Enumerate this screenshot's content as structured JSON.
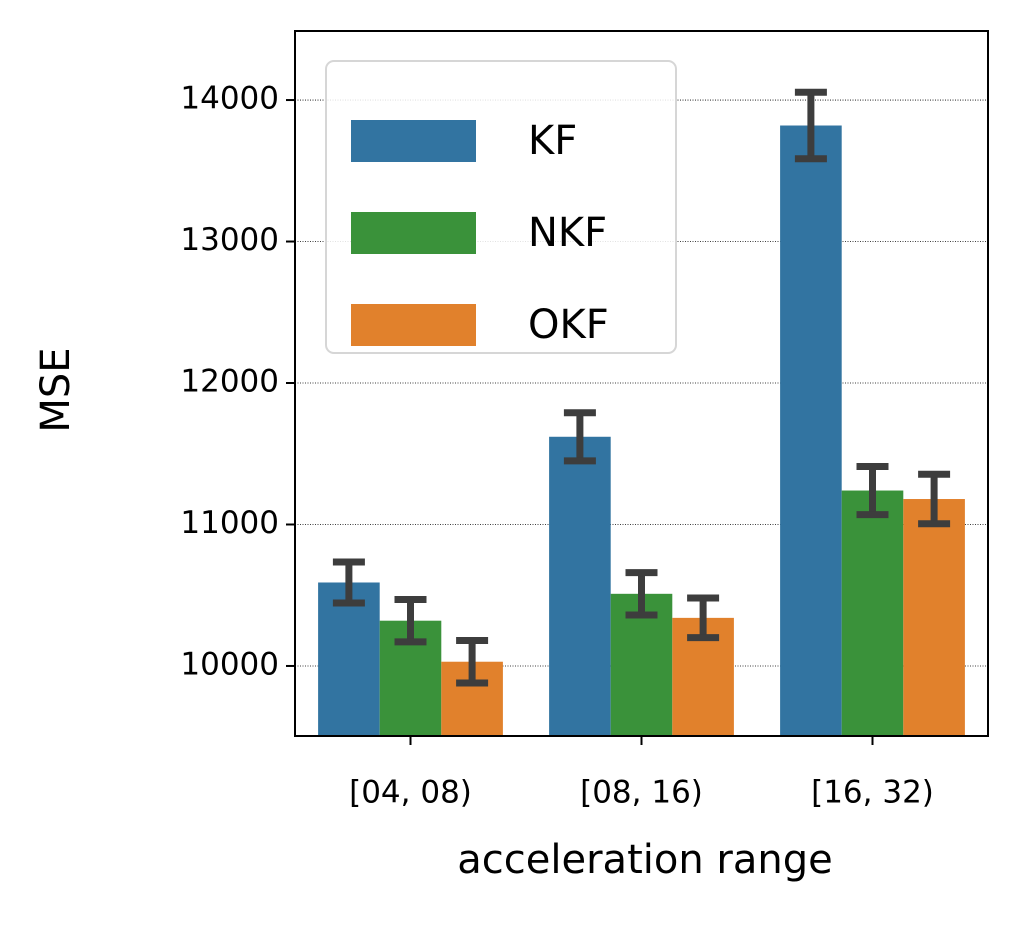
{
  "chart_data": {
    "type": "bar",
    "x_label": "acceleration range",
    "y_label": "MSE",
    "categories": [
      "[04, 08)",
      "[08, 16)",
      "[16, 32)"
    ],
    "series": [
      {
        "name": "KF",
        "color": "#3274a1",
        "values": [
          10590,
          11620,
          13820
        ],
        "errors": [
          145,
          170,
          235
        ]
      },
      {
        "name": "NKF",
        "color": "#3a923a",
        "values": [
          10320,
          10510,
          11240
        ],
        "errors": [
          150,
          150,
          170
        ]
      },
      {
        "name": "OKF",
        "color": "#e1812c",
        "values": [
          10030,
          10340,
          11180
        ],
        "errors": [
          150,
          140,
          175
        ]
      }
    ],
    "ylim": [
      9505,
      14488
    ],
    "yticks": [
      10000,
      11000,
      12000,
      13000,
      14000
    ],
    "grid": true,
    "legend": "upper left"
  }
}
